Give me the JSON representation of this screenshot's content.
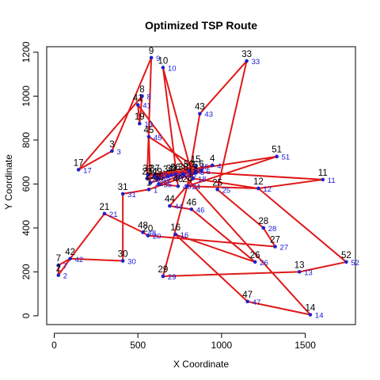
{
  "chart_data": {
    "type": "scatter",
    "title": "Optimized TSP Route",
    "xlabel": "X Coordinate",
    "ylabel": "Y Coordinate",
    "xlim": [
      -45,
      1800
    ],
    "ylim": [
      -40,
      1225
    ],
    "xticks": [
      0,
      500,
      1000,
      1500
    ],
    "yticks": [
      0,
      200,
      400,
      600,
      800,
      1000,
      1200
    ],
    "route_color": "#e01818",
    "point_color": "#2020c8",
    "label_color_outer": "#000000",
    "label_color_inner": "#1515d6",
    "points": [
      {
        "id": 1,
        "x": 565,
        "y": 575
      },
      {
        "id": 2,
        "x": 25,
        "y": 185
      },
      {
        "id": 3,
        "x": 345,
        "y": 750
      },
      {
        "id": 4,
        "x": 945,
        "y": 685
      },
      {
        "id": 5,
        "x": 845,
        "y": 655
      },
      {
        "id": 6,
        "x": 880,
        "y": 660
      },
      {
        "id": 7,
        "x": 25,
        "y": 230
      },
      {
        "id": 8,
        "x": 525,
        "y": 1000
      },
      {
        "id": 9,
        "x": 580,
        "y": 1175
      },
      {
        "id": 10,
        "x": 650,
        "y": 1130
      },
      {
        "id": 11,
        "x": 1605,
        "y": 620
      },
      {
        "id": 12,
        "x": 1220,
        "y": 580
      },
      {
        "id": 13,
        "x": 1465,
        "y": 200
      },
      {
        "id": 14,
        "x": 1530,
        "y": 5
      },
      {
        "id": 15,
        "x": 845,
        "y": 680
      },
      {
        "id": 16,
        "x": 725,
        "y": 370
      },
      {
        "id": 17,
        "x": 145,
        "y": 665
      },
      {
        "id": 18,
        "x": 830,
        "y": 625
      },
      {
        "id": 19,
        "x": 510,
        "y": 875
      },
      {
        "id": 20,
        "x": 560,
        "y": 365
      },
      {
        "id": 21,
        "x": 300,
        "y": 465
      },
      {
        "id": 22,
        "x": 575,
        "y": 605
      },
      {
        "id": 23,
        "x": 555,
        "y": 625
      },
      {
        "id": 24,
        "x": 795,
        "y": 590
      },
      {
        "id": 25,
        "x": 975,
        "y": 575
      },
      {
        "id": 26,
        "x": 1200,
        "y": 245
      },
      {
        "id": 27,
        "x": 1320,
        "y": 315
      },
      {
        "id": 28,
        "x": 1250,
        "y": 400
      },
      {
        "id": 29,
        "x": 650,
        "y": 180
      },
      {
        "id": 30,
        "x": 410,
        "y": 250
      },
      {
        "id": 31,
        "x": 410,
        "y": 555
      },
      {
        "id": 32,
        "x": 560,
        "y": 640
      },
      {
        "id": 33,
        "x": 1150,
        "y": 1160
      },
      {
        "id": 34,
        "x": 680,
        "y": 635
      },
      {
        "id": 35,
        "x": 625,
        "y": 600
      },
      {
        "id": 36,
        "x": 725,
        "y": 645
      },
      {
        "id": 37,
        "x": 600,
        "y": 640
      },
      {
        "id": 38,
        "x": 770,
        "y": 645
      },
      {
        "id": 39,
        "x": 700,
        "y": 640
      },
      {
        "id": 40,
        "x": 740,
        "y": 590
      },
      {
        "id": 41,
        "x": 500,
        "y": 960
      },
      {
        "id": 42,
        "x": 95,
        "y": 260
      },
      {
        "id": 43,
        "x": 870,
        "y": 920
      },
      {
        "id": 44,
        "x": 690,
        "y": 500
      },
      {
        "id": 45,
        "x": 565,
        "y": 815
      },
      {
        "id": 46,
        "x": 820,
        "y": 485
      },
      {
        "id": 47,
        "x": 1155,
        "y": 65
      },
      {
        "id": 48,
        "x": 530,
        "y": 380
      },
      {
        "id": 49,
        "x": 615,
        "y": 625
      },
      {
        "id": 50,
        "x": 805,
        "y": 660
      },
      {
        "id": 51,
        "x": 1330,
        "y": 725
      },
      {
        "id": 52,
        "x": 1745,
        "y": 245
      }
    ],
    "route": [
      1,
      31,
      30,
      42,
      2,
      7,
      42,
      21,
      48,
      20,
      27,
      28,
      25,
      33,
      43,
      24,
      12,
      11,
      5,
      50,
      4,
      23,
      9,
      3,
      17,
      8,
      19,
      41,
      18,
      10,
      40,
      35,
      38,
      49,
      39,
      36,
      32,
      15,
      34,
      22,
      45,
      6,
      37,
      51,
      24,
      29,
      13,
      52,
      12,
      18,
      44,
      46,
      26,
      16,
      47,
      14,
      38,
      5,
      6,
      1
    ]
  }
}
